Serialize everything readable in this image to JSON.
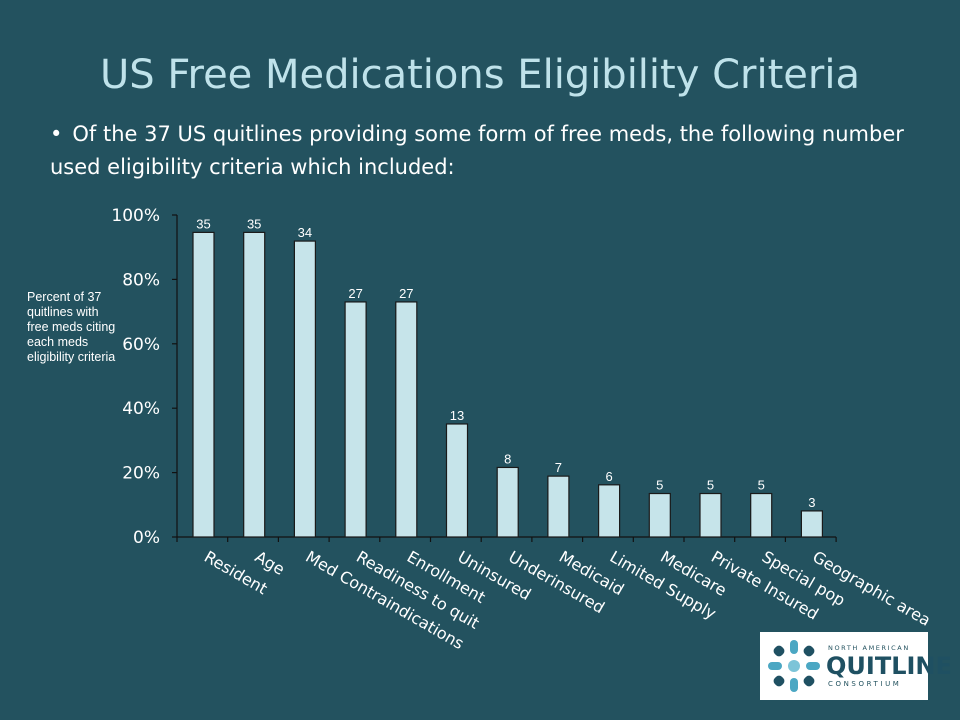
{
  "slide": {
    "title": "US Free Medications Eligibility Criteria",
    "bullet_mark": "•",
    "bullet_text": "Of the 37 US quitlines providing some form of free meds, the following number used eligibility criteria which included:"
  },
  "logo": {
    "top_text": "NORTH AMERICAN",
    "main_text": "QUITLINE",
    "bottom_text": "CONSORTIUM",
    "icon": "quitline-logo-icon"
  },
  "colors": {
    "background": "#23525f",
    "bar_fill": "#c6e4ea",
    "bar_stroke": "#1a1a1a",
    "title": "#bfe2ea"
  },
  "chart_data": {
    "type": "bar",
    "ylabel": "Percent of 37 quitlines with free meds citing each meds eligibility criteria",
    "xlabel": "",
    "ylim": [
      0,
      100
    ],
    "y_ticks": [
      "0%",
      "20%",
      "40%",
      "60%",
      "80%",
      "100%"
    ],
    "grid": false,
    "legend": "none",
    "categories": [
      "Resident",
      "Age",
      "Med Contraindications",
      "Readiness to quit",
      "Enrollment",
      "Uninsured",
      "Underinsured",
      "Medicaid",
      "Limited Supply",
      "Medicare",
      "Private Insured",
      "Special pop",
      "Geographic area"
    ],
    "counts": [
      "35",
      "35",
      "34",
      "27",
      "27",
      "13",
      "8",
      "7",
      "6",
      "5",
      "5",
      "5",
      "3"
    ],
    "values": [
      94.6,
      94.6,
      91.9,
      73.0,
      73.0,
      35.1,
      21.6,
      18.9,
      16.2,
      13.5,
      13.5,
      13.5,
      8.1
    ]
  }
}
